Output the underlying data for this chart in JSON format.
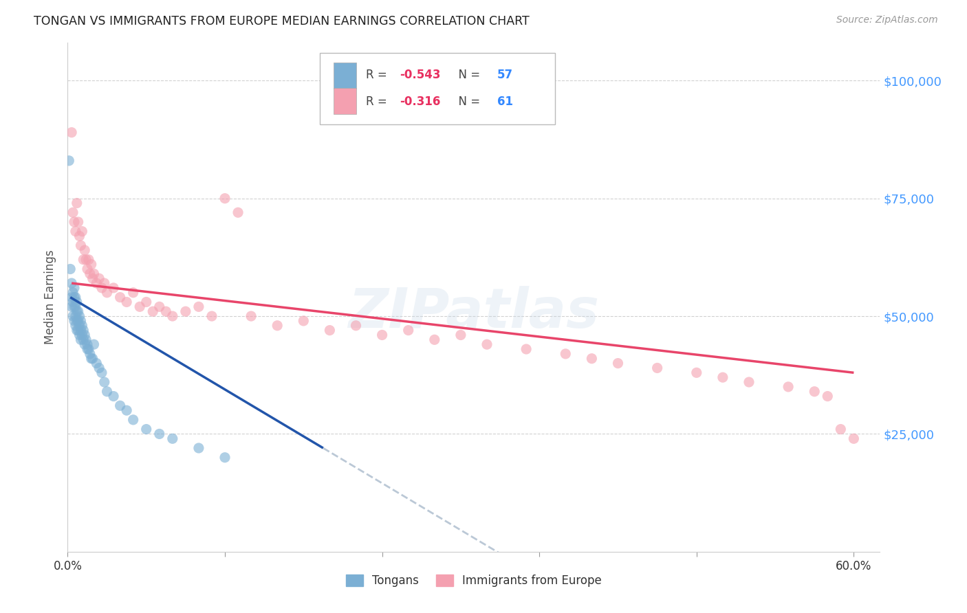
{
  "title": "TONGAN VS IMMIGRANTS FROM EUROPE MEDIAN EARNINGS CORRELATION CHART",
  "source": "Source: ZipAtlas.com",
  "ylabel": "Median Earnings",
  "ytick_labels": [
    "$25,000",
    "$50,000",
    "$75,000",
    "$100,000"
  ],
  "ytick_values": [
    25000,
    50000,
    75000,
    100000
  ],
  "ylim": [
    0,
    108000
  ],
  "xlim": [
    0.0,
    0.62
  ],
  "legend_label1": "Tongans",
  "legend_label2": "Immigrants from Europe",
  "watermark": "ZIPatlas",
  "blue_color": "#7bafd4",
  "pink_color": "#f4a0b0",
  "blue_line_color": "#2255aa",
  "pink_line_color": "#e8456a",
  "dashed_line_color": "#aabbcc",
  "background_color": "#ffffff",
  "grid_color": "#cccccc",
  "ytick_color": "#4499ff",
  "xtick_color": "#333333",
  "R1": "-0.543",
  "N1": "57",
  "R2": "-0.316",
  "N2": "61",
  "tongans_x": [
    0.001,
    0.002,
    0.003,
    0.003,
    0.003,
    0.004,
    0.004,
    0.004,
    0.005,
    0.005,
    0.005,
    0.005,
    0.006,
    0.006,
    0.006,
    0.006,
    0.007,
    0.007,
    0.007,
    0.007,
    0.008,
    0.008,
    0.008,
    0.009,
    0.009,
    0.009,
    0.01,
    0.01,
    0.01,
    0.011,
    0.011,
    0.012,
    0.012,
    0.013,
    0.013,
    0.014,
    0.015,
    0.015,
    0.016,
    0.017,
    0.018,
    0.019,
    0.02,
    0.022,
    0.024,
    0.026,
    0.028,
    0.03,
    0.035,
    0.04,
    0.045,
    0.05,
    0.06,
    0.07,
    0.08,
    0.1,
    0.12
  ],
  "tongans_y": [
    83000,
    60000,
    57000,
    54000,
    52000,
    55000,
    53000,
    50000,
    56000,
    54000,
    52000,
    49000,
    54000,
    52000,
    50000,
    48000,
    53000,
    51000,
    49000,
    47000,
    51000,
    49000,
    47000,
    50000,
    48000,
    46000,
    49000,
    47000,
    45000,
    48000,
    46000,
    47000,
    45000,
    46000,
    44000,
    45000,
    44000,
    43000,
    43000,
    42000,
    41000,
    41000,
    44000,
    40000,
    39000,
    38000,
    36000,
    34000,
    33000,
    31000,
    30000,
    28000,
    26000,
    25000,
    24000,
    22000,
    20000
  ],
  "europe_x": [
    0.003,
    0.004,
    0.005,
    0.006,
    0.007,
    0.008,
    0.009,
    0.01,
    0.011,
    0.012,
    0.013,
    0.014,
    0.015,
    0.016,
    0.017,
    0.018,
    0.019,
    0.02,
    0.022,
    0.024,
    0.026,
    0.028,
    0.03,
    0.035,
    0.04,
    0.045,
    0.05,
    0.055,
    0.06,
    0.065,
    0.07,
    0.075,
    0.08,
    0.09,
    0.1,
    0.11,
    0.12,
    0.13,
    0.14,
    0.16,
    0.18,
    0.2,
    0.22,
    0.24,
    0.26,
    0.28,
    0.3,
    0.32,
    0.35,
    0.38,
    0.4,
    0.42,
    0.45,
    0.48,
    0.5,
    0.52,
    0.55,
    0.57,
    0.58,
    0.59,
    0.6
  ],
  "europe_y": [
    89000,
    72000,
    70000,
    68000,
    74000,
    70000,
    67000,
    65000,
    68000,
    62000,
    64000,
    62000,
    60000,
    62000,
    59000,
    61000,
    58000,
    59000,
    57000,
    58000,
    56000,
    57000,
    55000,
    56000,
    54000,
    53000,
    55000,
    52000,
    53000,
    51000,
    52000,
    51000,
    50000,
    51000,
    52000,
    50000,
    75000,
    72000,
    50000,
    48000,
    49000,
    47000,
    48000,
    46000,
    47000,
    45000,
    46000,
    44000,
    43000,
    42000,
    41000,
    40000,
    39000,
    38000,
    37000,
    36000,
    35000,
    34000,
    33000,
    26000,
    24000
  ]
}
